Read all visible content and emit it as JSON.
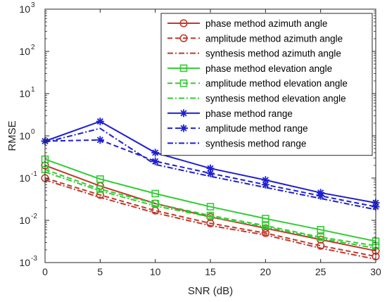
{
  "chart_data": {
    "type": "line",
    "xlabel": "SNR (dB)",
    "ylabel": "RMSE",
    "yscale": "log",
    "xlim": [
      0,
      30
    ],
    "ylim": [
      0.001,
      1000
    ],
    "x": [
      0,
      5,
      10,
      15,
      20,
      25,
      30
    ],
    "xticks": [
      "0",
      "5",
      "10",
      "15",
      "20",
      "25",
      "30"
    ],
    "yticks": [
      {
        "value": 0.001,
        "label": "10",
        "exp": "-3"
      },
      {
        "value": 0.01,
        "label": "10",
        "exp": "-2"
      },
      {
        "value": 0.1,
        "label": "10",
        "exp": "-1"
      },
      {
        "value": 1,
        "label": "10",
        "exp": "0"
      },
      {
        "value": 10,
        "label": "10",
        "exp": "1"
      },
      {
        "value": 100,
        "label": "10",
        "exp": "2"
      },
      {
        "value": 1000,
        "label": "10",
        "exp": "3"
      }
    ],
    "grid": false,
    "legend_position": "top-right",
    "series": [
      {
        "name": "phase method azimuth angle",
        "color": "#c0392b",
        "dash": "solid",
        "marker": "circle",
        "values": [
          0.2,
          0.065,
          0.025,
          0.012,
          0.0065,
          0.0035,
          0.0019
        ]
      },
      {
        "name": "amplitude method azimuth angle",
        "color": "#c0392b",
        "dash": "dashed",
        "marker": "circle",
        "values": [
          0.1,
          0.04,
          0.017,
          0.0085,
          0.005,
          0.0025,
          0.0014
        ]
      },
      {
        "name": "synthesis method azimuth angle",
        "color": "#c0392b",
        "dash": "dashdot",
        "marker": "none",
        "values": [
          0.09,
          0.035,
          0.015,
          0.0075,
          0.0045,
          0.0022,
          0.0012
        ]
      },
      {
        "name": "phase method elevation angle",
        "color": "#33cc33",
        "dash": "solid",
        "marker": "square",
        "values": [
          0.28,
          0.095,
          0.043,
          0.021,
          0.011,
          0.006,
          0.0032
        ]
      },
      {
        "name": "amplitude method elevation angle",
        "color": "#33cc33",
        "dash": "dashed",
        "marker": "square",
        "values": [
          0.16,
          0.055,
          0.025,
          0.013,
          0.0075,
          0.004,
          0.0025
        ]
      },
      {
        "name": "synthesis method elevation angle",
        "color": "#33cc33",
        "dash": "dashdot",
        "marker": "none",
        "values": [
          0.14,
          0.05,
          0.022,
          0.012,
          0.007,
          0.0037,
          0.0022
        ]
      },
      {
        "name": "phase method range",
        "color": "#1f1fd1",
        "dash": "solid",
        "marker": "asterisk",
        "values": [
          0.75,
          2.2,
          0.4,
          0.17,
          0.09,
          0.045,
          0.026
        ]
      },
      {
        "name": "amplitude method range",
        "color": "#1f1fd1",
        "dash": "dashed",
        "marker": "asterisk",
        "values": [
          0.75,
          0.8,
          0.25,
          0.13,
          0.07,
          0.038,
          0.021
        ]
      },
      {
        "name": "synthesis method range",
        "color": "#1f1fd1",
        "dash": "dashdot",
        "marker": "none",
        "values": [
          0.7,
          1.5,
          0.21,
          0.11,
          0.06,
          0.033,
          0.018
        ]
      }
    ]
  }
}
